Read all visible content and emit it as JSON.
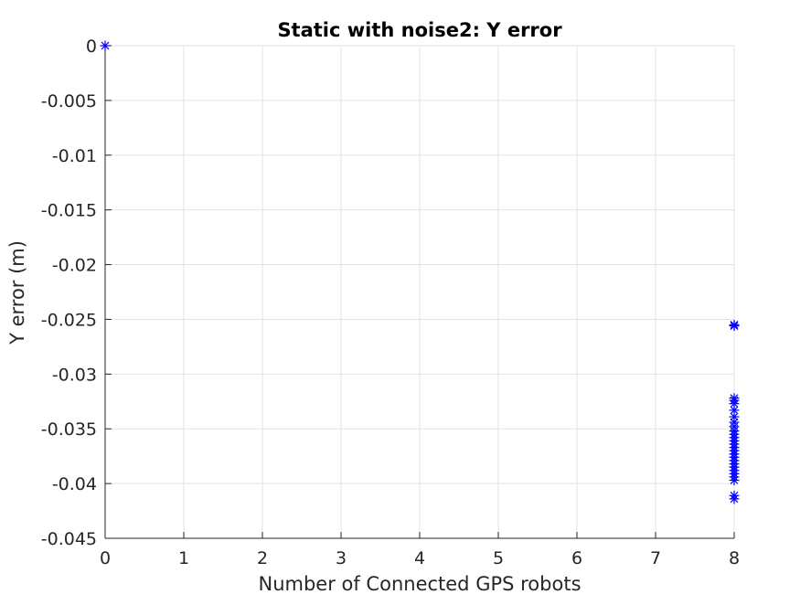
{
  "chart_data": {
    "type": "scatter",
    "title": "Static with noise2: Y error",
    "xlabel": "Number of Connected GPS robots",
    "ylabel": "Y error (m)",
    "xlim": [
      0,
      8
    ],
    "ylim": [
      -0.045,
      0
    ],
    "xticks": [
      "0",
      "1",
      "2",
      "3",
      "4",
      "5",
      "6",
      "7",
      "8"
    ],
    "xtick_values": [
      0,
      1,
      2,
      3,
      4,
      5,
      6,
      7,
      8
    ],
    "yticks": [
      "0",
      "-0.005",
      "-0.01",
      "-0.015",
      "-0.02",
      "-0.025",
      "-0.03",
      "-0.035",
      "-0.04",
      "-0.045"
    ],
    "ytick_values": [
      0,
      -0.005,
      -0.01,
      -0.015,
      -0.02,
      -0.025,
      -0.03,
      -0.035,
      -0.04,
      -0.045
    ],
    "grid": true,
    "marker": "asterisk",
    "marker_color": "#0000ff",
    "points": [
      [
        0,
        0
      ],
      [
        8,
        -0.0255
      ],
      [
        8,
        -0.0256
      ],
      [
        8,
        -0.0322
      ],
      [
        8,
        -0.0324
      ],
      [
        8,
        -0.0327
      ],
      [
        8,
        -0.0333
      ],
      [
        8,
        -0.0339
      ],
      [
        8,
        -0.0344
      ],
      [
        8,
        -0.0348
      ],
      [
        8,
        -0.0352
      ],
      [
        8,
        -0.0355
      ],
      [
        8,
        -0.0358
      ],
      [
        8,
        -0.0361
      ],
      [
        8,
        -0.0364
      ],
      [
        8,
        -0.0367
      ],
      [
        8,
        -0.037
      ],
      [
        8,
        -0.0373
      ],
      [
        8,
        -0.0376
      ],
      [
        8,
        -0.0379
      ],
      [
        8,
        -0.0382
      ],
      [
        8,
        -0.0385
      ],
      [
        8,
        -0.0388
      ],
      [
        8,
        -0.0391
      ],
      [
        8,
        -0.0394
      ],
      [
        8,
        -0.0397
      ],
      [
        8,
        -0.0411
      ],
      [
        8,
        -0.0414
      ]
    ]
  }
}
